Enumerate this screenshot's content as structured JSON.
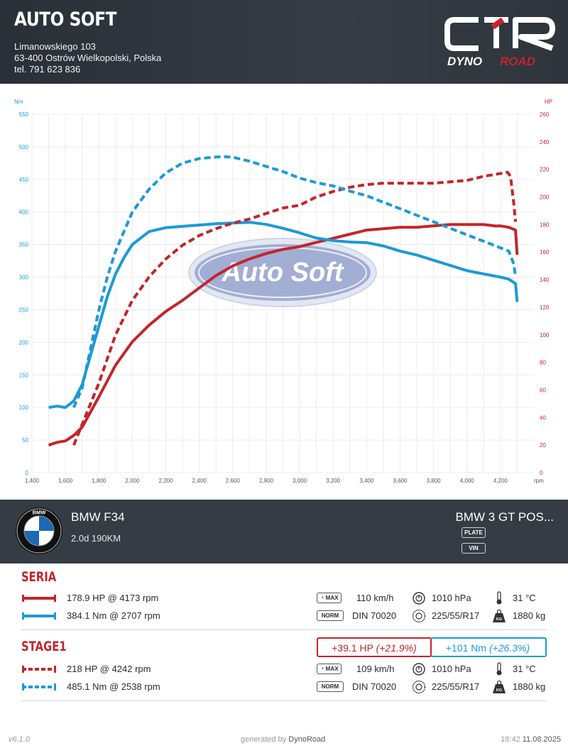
{
  "header": {
    "company": "AUTO SOFT",
    "address": "Limanowskiego 103",
    "city": "63-400 Ostrów Wielkopolski, Polska",
    "phone": "tel. 791 623 836",
    "logo_mark": "CTR",
    "logo_word_1": "DYNO",
    "logo_word_2": "ROAD"
  },
  "watermark": "Auto Soft",
  "chart_data": {
    "type": "line",
    "x_label": "rpm",
    "y_left_label": "Nm",
    "y_right_label": "HP",
    "xlim": [
      1400,
      4400
    ],
    "ylim_left": [
      0,
      550
    ],
    "ylim_right": [
      0,
      260
    ],
    "x_ticks": [
      "1,400",
      "1,600",
      "1,800",
      "2,000",
      "2,200",
      "2,400",
      "2,600",
      "2,800",
      "3,000",
      "3,200",
      "3,400",
      "3,600",
      "3,800",
      "4,000",
      "4,200"
    ],
    "y_left_ticks": [
      "0",
      "50",
      "100",
      "150",
      "200",
      "250",
      "300",
      "350",
      "400",
      "450",
      "500",
      "550"
    ],
    "y_right_ticks": [
      "0",
      "20",
      "40",
      "60",
      "80",
      "100",
      "120",
      "140",
      "160",
      "180",
      "200",
      "220",
      "240",
      "260"
    ],
    "grid": true,
    "colors": {
      "power": "#c4242b",
      "torque": "#1b9ad6"
    },
    "series": [
      {
        "name": "SERIA power",
        "axis": "right",
        "style": "solid",
        "color": "#c4242b",
        "x": [
          1500,
          1550,
          1600,
          1650,
          1700,
          1800,
          1900,
          2000,
          2100,
          2200,
          2300,
          2400,
          2500,
          2600,
          2700,
          2800,
          2900,
          3000,
          3100,
          3200,
          3300,
          3400,
          3500,
          3600,
          3700,
          3800,
          3900,
          4000,
          4100,
          4173,
          4200,
          4250,
          4290,
          4300
        ],
        "y": [
          20,
          22,
          23,
          27,
          33,
          55,
          78,
          95,
          107,
          117,
          125,
          134,
          143,
          150,
          155,
          159,
          162,
          164,
          167,
          170,
          173,
          176,
          177,
          178,
          178,
          179,
          180,
          180,
          180,
          178.9,
          179,
          178,
          176,
          158
        ]
      },
      {
        "name": "SERIA torque",
        "axis": "left",
        "style": "solid",
        "color": "#1b9ad6",
        "x": [
          1500,
          1550,
          1600,
          1650,
          1700,
          1750,
          1800,
          1850,
          1900,
          1950,
          2000,
          2100,
          2200,
          2300,
          2400,
          2500,
          2600,
          2707,
          2800,
          2900,
          3000,
          3100,
          3200,
          3300,
          3400,
          3500,
          3600,
          3700,
          3800,
          3900,
          4000,
          4100,
          4200,
          4250,
          4290,
          4300
        ],
        "y": [
          100,
          102,
          100,
          110,
          135,
          180,
          225,
          270,
          305,
          330,
          350,
          370,
          376,
          378,
          380,
          382,
          383,
          384.1,
          381,
          375,
          368,
          360,
          356,
          354,
          353,
          348,
          340,
          334,
          326,
          318,
          310,
          305,
          300,
          297,
          290,
          262
        ]
      },
      {
        "name": "STAGE1 power",
        "axis": "right",
        "style": "dashed",
        "color": "#c4242b",
        "x": [
          1650,
          1700,
          1800,
          1900,
          2000,
          2100,
          2200,
          2300,
          2400,
          2500,
          2600,
          2700,
          2800,
          2900,
          3000,
          3100,
          3200,
          3300,
          3400,
          3500,
          3600,
          3700,
          3800,
          3900,
          4000,
          4100,
          4200,
          4242,
          4260,
          4280,
          4290
        ],
        "y": [
          20,
          35,
          65,
          100,
          125,
          142,
          155,
          165,
          172,
          177,
          181,
          184,
          188,
          192,
          194,
          200,
          204,
          207,
          209,
          210,
          210,
          210,
          210,
          211,
          212,
          215,
          217,
          218,
          215,
          195,
          182
        ]
      },
      {
        "name": "STAGE1 torque",
        "axis": "left",
        "style": "dashed",
        "color": "#1b9ad6",
        "x": [
          1650,
          1700,
          1750,
          1800,
          1850,
          1900,
          1950,
          2000,
          2100,
          2200,
          2300,
          2400,
          2538,
          2600,
          2700,
          2800,
          2900,
          3000,
          3100,
          3200,
          3300,
          3400,
          3500,
          3600,
          3700,
          3800,
          3900,
          4000,
          4100,
          4200,
          4250,
          4280,
          4290
        ],
        "y": [
          100,
          130,
          190,
          250,
          300,
          340,
          370,
          400,
          435,
          460,
          475,
          482,
          485.1,
          484,
          478,
          470,
          462,
          452,
          445,
          440,
          432,
          425,
          415,
          405,
          395,
          385,
          375,
          365,
          355,
          345,
          340,
          320,
          300
        ]
      }
    ]
  },
  "car": {
    "logo": "BMW",
    "model": "BMW F34",
    "engine": "2.0d 190KM",
    "name": "BMW 3 GT POS...",
    "plate_label": "PLATE",
    "vin_label": "VIN"
  },
  "sections": [
    {
      "title": "SERIA",
      "power": "178.9 HP @ 4173 rpm",
      "torque": "384.1 Nm @ 2707 rpm",
      "max_label": "MAX",
      "max_speed": "110 km/h",
      "pressure": "1010 hPa",
      "temp": "31 °C",
      "norm_label": "NORM",
      "norm": "DIN 70020",
      "tire": "225/55/R17",
      "weight_icon_label": "KG",
      "weight": "1880 kg"
    },
    {
      "title": "STAGE1",
      "power": "218 HP @ 4242 rpm",
      "torque": "485.1 Nm @ 2538 rpm",
      "max_label": "MAX",
      "max_speed": "109 km/h",
      "pressure": "1010 hPa",
      "temp": "31 °C",
      "norm_label": "NORM",
      "norm": "DIN 70020",
      "tire": "225/55/R17",
      "weight_icon_label": "KG",
      "weight": "1880 kg"
    }
  ],
  "gain": {
    "hp": "+39.1 HP",
    "hp_pct": "(+21.9%)",
    "nm": "+101 Nm",
    "nm_pct": "(+26.3%)"
  },
  "footer": {
    "version": "v6.1.0",
    "generated_prefix": "generated by",
    "generated_brand": "DynoRoad",
    "time": "18:42",
    "date": "11.08.2025"
  }
}
